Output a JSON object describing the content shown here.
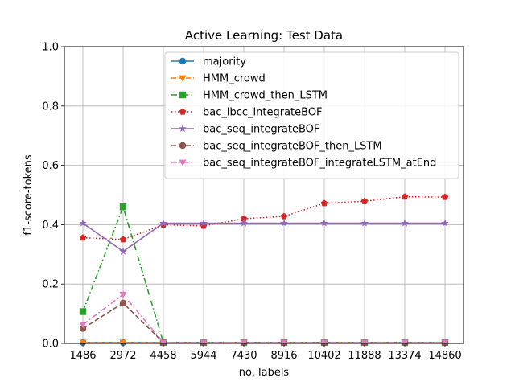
{
  "chart_data": {
    "type": "line",
    "title": "Active Learning: Test Data",
    "xlabel": "no. labels",
    "ylabel": "f1-score-tokens",
    "categories": [
      "1486",
      "2972",
      "4458",
      "5944",
      "7430",
      "8916",
      "10402",
      "11888",
      "13374",
      "14860"
    ],
    "ylim": [
      0,
      1
    ],
    "yticks": [
      "0.0",
      "0.2",
      "0.4",
      "0.6",
      "0.8",
      "1.0"
    ],
    "grid": true,
    "legend_position": "top-right",
    "series": [
      {
        "name": "majority",
        "color": "#1f77b4",
        "marker": "circle",
        "linestyle": "solid",
        "values": [
          0.003,
          0.003,
          0.003,
          0.003,
          0.003,
          0.003,
          0.003,
          0.003,
          0.003,
          0.003
        ]
      },
      {
        "name": "HMM_crowd",
        "color": "#ff7f0e",
        "marker": "triangle-down",
        "linestyle": "dashed",
        "values": [
          0.003,
          0.003,
          0.003,
          0.003,
          0.003,
          0.003,
          0.003,
          0.003,
          0.003,
          0.003
        ]
      },
      {
        "name": "HMM_crowd_then_LSTM",
        "color": "#2ca02c",
        "marker": "square",
        "linestyle": "dashdot",
        "values": [
          0.107,
          0.46,
          0.003,
          0.003,
          0.003,
          0.003,
          0.003,
          0.003,
          0.003,
          0.003
        ]
      },
      {
        "name": "bac_ibcc_integrateBOF",
        "color": "#d62728",
        "marker": "pentagon",
        "linestyle": "dotted",
        "values": [
          0.356,
          0.35,
          0.4,
          0.396,
          0.42,
          0.428,
          0.472,
          0.479,
          0.494,
          0.493
        ]
      },
      {
        "name": "bac_seq_integrateBOF",
        "color": "#9467bd",
        "marker": "star",
        "linestyle": "solid",
        "values": [
          0.405,
          0.31,
          0.405,
          0.405,
          0.405,
          0.405,
          0.405,
          0.405,
          0.405,
          0.405
        ]
      },
      {
        "name": "bac_seq_integrateBOF_then_LSTM",
        "color": "#8c564b",
        "marker": "circle",
        "linestyle": "dashed",
        "values": [
          0.05,
          0.136,
          0.003,
          0.003,
          0.003,
          0.003,
          0.003,
          0.003,
          0.003,
          0.003
        ]
      },
      {
        "name": "bac_seq_integrateBOF_integrateLSTM_atEnd",
        "color": "#e377c2",
        "marker": "triangle-down",
        "linestyle": "dashdot",
        "values": [
          0.063,
          0.165,
          0.003,
          0.003,
          0.003,
          0.003,
          0.003,
          0.003,
          0.003,
          0.003
        ]
      }
    ]
  }
}
